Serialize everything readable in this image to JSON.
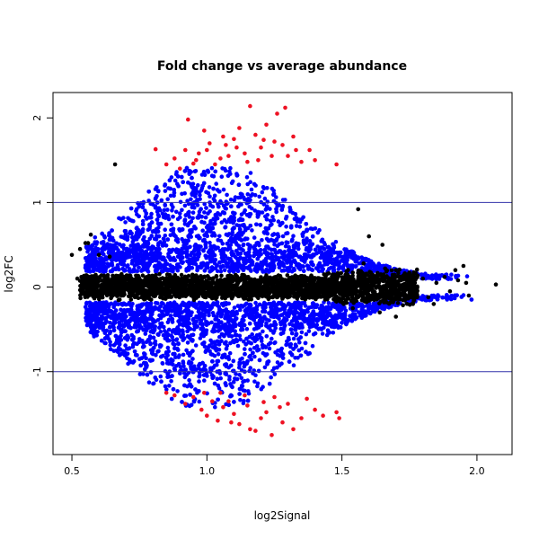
{
  "chart_data": {
    "type": "scatter",
    "title": "Fold change vs average abundance",
    "xlabel": "log2Signal",
    "ylabel": "log2FC",
    "xlim": [
      0.43,
      2.13
    ],
    "ylim": [
      -1.98,
      2.3
    ],
    "xticks": [
      0.5,
      1.0,
      1.5,
      2.0
    ],
    "xtick_labels": [
      "0.5",
      "1.0",
      "1.5",
      "2.0"
    ],
    "yticks": [
      -1,
      0,
      1,
      2
    ],
    "ytick_labels": [
      "-1",
      "0",
      "1",
      "2"
    ],
    "reference_lines": [
      {
        "axis": "y",
        "value": 1,
        "color": "#3333aa"
      },
      {
        "axis": "y",
        "value": -1,
        "color": "#3333aa"
      }
    ],
    "grid": false,
    "legend": "none",
    "series": [
      {
        "color": "#ee1122",
        "points": [
          [
            1.03,
            1.45
          ],
          [
            1.05,
            1.52
          ],
          [
            1.08,
            1.55
          ],
          [
            0.95,
            1.46
          ],
          [
            0.92,
            1.62
          ],
          [
            1.1,
            1.75
          ],
          [
            1.15,
            1.48
          ],
          [
            1.2,
            1.65
          ],
          [
            1.25,
            1.72
          ],
          [
            1.3,
            1.55
          ],
          [
            1.35,
            1.48
          ],
          [
            0.88,
            1.52
          ],
          [
            0.85,
            1.45
          ],
          [
            1.18,
            1.8
          ],
          [
            1.22,
            1.92
          ],
          [
            1.26,
            2.05
          ],
          [
            1.29,
            2.12
          ],
          [
            1.16,
            2.14
          ],
          [
            0.93,
            1.98
          ],
          [
            0.99,
            1.85
          ],
          [
            1.12,
            1.88
          ],
          [
            1.28,
            1.68
          ],
          [
            1.32,
            1.78
          ],
          [
            1.4,
            1.5
          ],
          [
            1.48,
            1.45
          ],
          [
            0.81,
            1.63
          ],
          [
            1.07,
            1.68
          ],
          [
            1.14,
            1.58
          ],
          [
            0.97,
            1.58
          ],
          [
            1.01,
            1.7
          ],
          [
            1.38,
            1.62
          ],
          [
            1.24,
            1.55
          ],
          [
            0.9,
            1.4
          ],
          [
            1.0,
            1.62
          ],
          [
            1.06,
            1.78
          ],
          [
            1.19,
            1.5
          ],
          [
            1.33,
            1.62
          ],
          [
            1.11,
            1.65
          ],
          [
            0.96,
            1.5
          ],
          [
            1.21,
            1.74
          ],
          [
            1.05,
            -1.25
          ],
          [
            1.08,
            -1.35
          ],
          [
            1.1,
            -1.5
          ],
          [
            1.15,
            -1.4
          ],
          [
            1.2,
            -1.55
          ],
          [
            1.25,
            -1.3
          ],
          [
            0.95,
            -1.3
          ],
          [
            0.98,
            -1.45
          ],
          [
            1.0,
            -1.52
          ],
          [
            1.12,
            -1.62
          ],
          [
            1.18,
            -1.7
          ],
          [
            1.22,
            -1.48
          ],
          [
            1.28,
            -1.6
          ],
          [
            1.3,
            -1.38
          ],
          [
            1.35,
            -1.55
          ],
          [
            1.4,
            -1.45
          ],
          [
            1.43,
            -1.52
          ],
          [
            1.48,
            -1.48
          ],
          [
            1.49,
            -1.55
          ],
          [
            1.24,
            -1.75
          ],
          [
            1.16,
            -1.68
          ],
          [
            0.92,
            -1.38
          ],
          [
            0.88,
            -1.28
          ],
          [
            0.85,
            -1.25
          ],
          [
            1.04,
            -1.58
          ],
          [
            1.06,
            -1.42
          ],
          [
            1.32,
            -1.68
          ],
          [
            1.27,
            -1.42
          ],
          [
            1.14,
            -1.28
          ],
          [
            1.02,
            -1.35
          ],
          [
            1.37,
            -1.32
          ],
          [
            1.09,
            -1.6
          ],
          [
            0.99,
            -1.25
          ],
          [
            1.21,
            -1.36
          ]
        ]
      },
      {
        "color": "#0000ff",
        "note_description": "",
        "points": []
      },
      {
        "color": "#000000",
        "points": [
          [
            0.52,
            0.1
          ],
          [
            0.53,
            0.45
          ],
          [
            0.55,
            0.52
          ],
          [
            0.5,
            0.38
          ],
          [
            0.56,
            0.52
          ],
          [
            0.66,
            1.45
          ],
          [
            0.6,
            0.38
          ],
          [
            0.64,
            0.36
          ],
          [
            0.57,
            0.62
          ],
          [
            1.56,
            0.92
          ],
          [
            1.6,
            0.6
          ],
          [
            1.65,
            0.5
          ],
          [
            1.7,
            0.2
          ],
          [
            1.75,
            0.15
          ],
          [
            1.8,
            0.1
          ],
          [
            1.85,
            0.05
          ],
          [
            1.9,
            -0.05
          ],
          [
            1.97,
            -0.1
          ],
          [
            2.07,
            0.03
          ],
          [
            1.96,
            0.05
          ],
          [
            1.82,
            -0.12
          ],
          [
            1.72,
            -0.08
          ],
          [
            1.62,
            -0.15
          ],
          [
            1.58,
            0.28
          ],
          [
            1.54,
            -0.25
          ],
          [
            1.66,
            0.22
          ],
          [
            1.68,
            -0.18
          ],
          [
            1.77,
            0.05
          ],
          [
            1.88,
            0.12
          ],
          [
            1.93,
            0.08
          ],
          [
            1.64,
            -0.3
          ],
          [
            1.7,
            -0.35
          ],
          [
            1.76,
            -0.05
          ],
          [
            1.84,
            -0.2
          ],
          [
            1.92,
            0.2
          ],
          [
            1.95,
            0.25
          ]
        ]
      }
    ]
  }
}
